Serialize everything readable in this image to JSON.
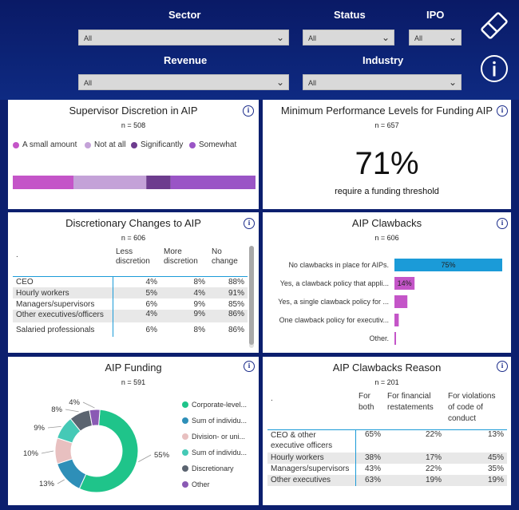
{
  "filters": {
    "sector": {
      "label": "Sector",
      "value": "All"
    },
    "status": {
      "label": "Status",
      "value": "All"
    },
    "ipo": {
      "label": "IPO",
      "value": "All"
    },
    "revenue": {
      "label": "Revenue",
      "value": "All"
    },
    "industry": {
      "label": "Industry",
      "value": "All"
    }
  },
  "icons": {
    "eraser": "eraser-icon",
    "info": "info-icon"
  },
  "supervisor": {
    "title": "Supervisor Discretion in AIP",
    "n": "n = 508",
    "legend": [
      {
        "label": "A small amount",
        "color": "#c455c8"
      },
      {
        "label": "Not at all",
        "color": "#c4a2d8"
      },
      {
        "label": "Significantly",
        "color": "#6d3c8e"
      },
      {
        "label": "Somewhat",
        "color": "#9a55c6"
      }
    ],
    "shares": [
      0.25,
      0.3,
      0.1,
      0.35
    ]
  },
  "minperf": {
    "title": "Minimum Performance Levels for Funding AIP",
    "n": "n = 657",
    "value": "71%",
    "caption": "require a funding threshold"
  },
  "discretionary": {
    "title": "Discretionary Changes to AIP",
    "n": "n = 606",
    "headers": [
      ".",
      "Less discretion",
      "More discretion",
      "No change"
    ],
    "rows": [
      [
        "CEO",
        "4%",
        "8%",
        "88%"
      ],
      [
        "Hourly workers",
        "5%",
        "4%",
        "91%"
      ],
      [
        "Managers/supervisors",
        "6%",
        "9%",
        "85%"
      ],
      [
        "Other executives/officers",
        "4%",
        "9%",
        "86%"
      ],
      [
        "Salaried professionals",
        "6%",
        "8%",
        "86%"
      ]
    ]
  },
  "clawbacks": {
    "title": "AIP Clawbacks",
    "n": "n = 606",
    "items": [
      {
        "label": "No clawbacks in place for AIPs.",
        "value": 75,
        "text": "75%",
        "color": "#1b9bd8"
      },
      {
        "label": "Yes, a clawback policy that appli...",
        "value": 14,
        "text": "14%",
        "color": "#c455c8"
      },
      {
        "label": "Yes, a single clawback policy for ...",
        "value": 9,
        "text": "",
        "color": "#c455c8"
      },
      {
        "label": "One clawback policy for executiv...",
        "value": 3,
        "text": "",
        "color": "#c455c8"
      },
      {
        "label": "Other.",
        "value": 1,
        "text": "",
        "color": "#c455c8"
      }
    ]
  },
  "funding": {
    "title": "AIP Funding",
    "n": "n = 591",
    "slices": [
      {
        "label": "Corporate-level...",
        "value": 55,
        "text": "55%",
        "color": "#1fc48a"
      },
      {
        "label": "Sum of individu...",
        "value": 13,
        "text": "13%",
        "color": "#2e8fb8"
      },
      {
        "label": "Division- or uni...",
        "value": 10,
        "text": "10%",
        "color": "#e8c0c0"
      },
      {
        "label": "Sum of individu...",
        "value": 9,
        "text": "9%",
        "color": "#45c9b6"
      },
      {
        "label": "Discretionary",
        "value": 8,
        "text": "8%",
        "color": "#5b6470"
      },
      {
        "label": "Other",
        "value": 4,
        "text": "4%",
        "color": "#8a5ab4"
      }
    ]
  },
  "reasons": {
    "title": "AIP Clawbacks Reason",
    "n": "n = 201",
    "headers": [
      ".",
      "For both",
      "For financial restatements",
      "For violations of code of conduct"
    ],
    "rows": [
      [
        "CEO & other executive officers",
        "65%",
        "22%",
        "13%"
      ],
      [
        "Hourly workers",
        "38%",
        "17%",
        "45%"
      ],
      [
        "Managers/supervisors",
        "43%",
        "22%",
        "35%"
      ],
      [
        "Other executives",
        "63%",
        "19%",
        "19%"
      ]
    ]
  }
}
